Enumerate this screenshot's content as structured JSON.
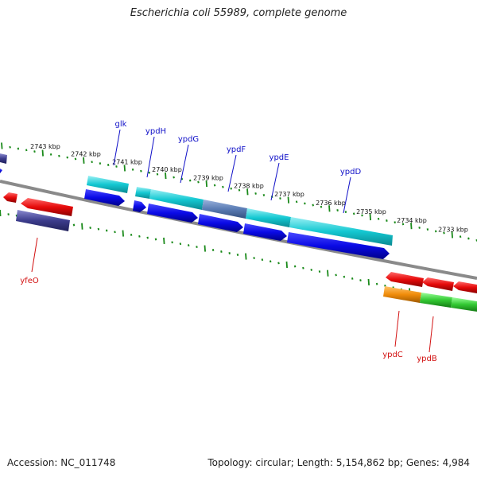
{
  "title": "Escherichia coli 55989, complete genome",
  "footer": {
    "accession": "Accession: NC_011748",
    "topology": "Topology: circular; Length: 5,154,862 bp; Genes: 4,984"
  },
  "colors": {
    "backbone": "#8a8a8a",
    "tick": "#1a8a1a",
    "forward_gene": "#0a0ae6",
    "reverse_gene": "#e60a0a",
    "cds_cyan": "#14c8d2",
    "cds_steel": "#5a7cb4",
    "cds_navy": "#3c3c8c",
    "cds_orange": "#f08c0a",
    "cds_green": "#32c832",
    "label_forward": "#1010c8",
    "label_reverse": "#d21010"
  },
  "ruler": {
    "tick_labels": [
      "2743 kbp",
      "2742 kbp",
      "2741 kbp",
      "2740 kbp",
      "2739 kbp",
      "2738 kbp",
      "2737 kbp",
      "2736 kbp",
      "2735 kbp",
      "2734 kbp",
      "2733 kbp"
    ]
  },
  "genes_forward": [
    {
      "name": "glk"
    },
    {
      "name": "ypdH"
    },
    {
      "name": "ypdG"
    },
    {
      "name": "ypdF"
    },
    {
      "name": "ypdE"
    },
    {
      "name": "ypdD"
    }
  ],
  "genes_reverse": [
    {
      "name": "yfeO"
    },
    {
      "name": "ypdC"
    },
    {
      "name": "ypdB"
    }
  ]
}
